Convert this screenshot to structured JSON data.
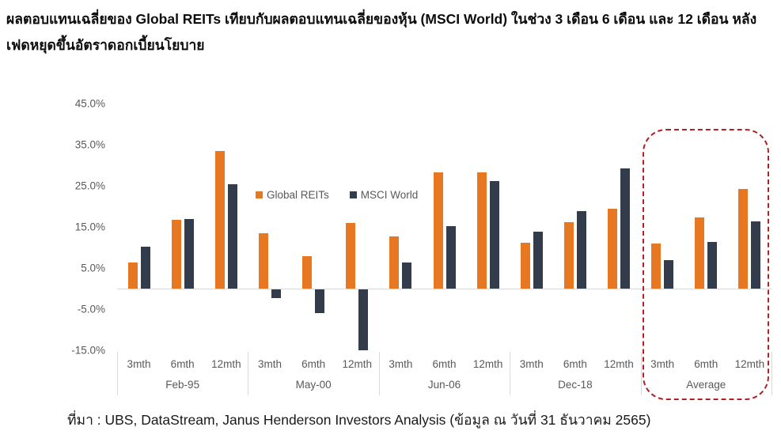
{
  "title": "ผลตอบแทนเฉลี่ยของ Global REITs เทียบกับผลตอบแทนเฉลี่ยของหุ้น (MSCI World) ในช่วง 3 เดือน 6 เดือน และ 12 เดือน หลังเฟดหยุดขึ้นอัตราดอกเบี้ยนโยบาย",
  "source_note": "ที่มา : UBS, DataStream, Janus Henderson Investors Analysis (ข้อมูล ณ วันที่ 31 ธันวาคม 2565)",
  "legend": {
    "items": [
      {
        "label": "Global REITs",
        "color": "#e87722"
      },
      {
        "label": "MSCI World",
        "color": "#323c4a"
      }
    ]
  },
  "colors": {
    "reits_orange": "#e87722",
    "msci_dark": "#323c4a",
    "axis_text": "#595959",
    "gridline": "#d9d9d9",
    "highlight_border": "#b02025"
  },
  "chart_data": {
    "type": "bar",
    "title": "",
    "legend_position": "top-center",
    "grid": "zero-line-only",
    "unit": "%",
    "y_axis": {
      "min": -15,
      "max": 45,
      "tick_step": 10,
      "tick_values": [
        45,
        35,
        25,
        15,
        5,
        -5,
        -15
      ],
      "tick_labels": [
        "45.0%",
        "35.0%",
        "25.0%",
        "15.0%",
        "5.0%",
        "-5.0%",
        "-15.0%"
      ]
    },
    "categories": [
      "3mth",
      "6mth",
      "12mth"
    ],
    "series_names": [
      "Global REITs",
      "MSCI World"
    ],
    "groups": [
      {
        "label": "Feb-95",
        "series": [
          {
            "name": "Global REITs",
            "values": [
              6.3,
              16.8,
              33.5
            ]
          },
          {
            "name": "MSCI World",
            "values": [
              10.1,
              16.9,
              25.4
            ]
          }
        ]
      },
      {
        "label": "May-00",
        "series": [
          {
            "name": "Global REITs",
            "values": [
              13.4,
              7.9,
              16.0
            ]
          },
          {
            "name": "MSCI World",
            "values": [
              -2.1,
              -5.8,
              -14.9
            ]
          }
        ]
      },
      {
        "label": "Jun-06",
        "series": [
          {
            "name": "Global REITs",
            "values": [
              12.6,
              28.2,
              28.2
            ]
          },
          {
            "name": "MSCI World",
            "values": [
              6.3,
              15.2,
              26.2
            ]
          }
        ]
      },
      {
        "label": "Dec-18",
        "series": [
          {
            "name": "Global REITs",
            "values": [
              11.2,
              16.1,
              19.4
            ]
          },
          {
            "name": "MSCI World",
            "values": [
              13.9,
              18.9,
              29.3
            ]
          }
        ]
      },
      {
        "label": "Average",
        "series": [
          {
            "name": "Global REITs",
            "values": [
              11.0,
              17.3,
              24.3
            ]
          },
          {
            "name": "MSCI World",
            "values": [
              7.0,
              11.3,
              16.4
            ]
          }
        ]
      }
    ],
    "highlight_group": "Average"
  }
}
